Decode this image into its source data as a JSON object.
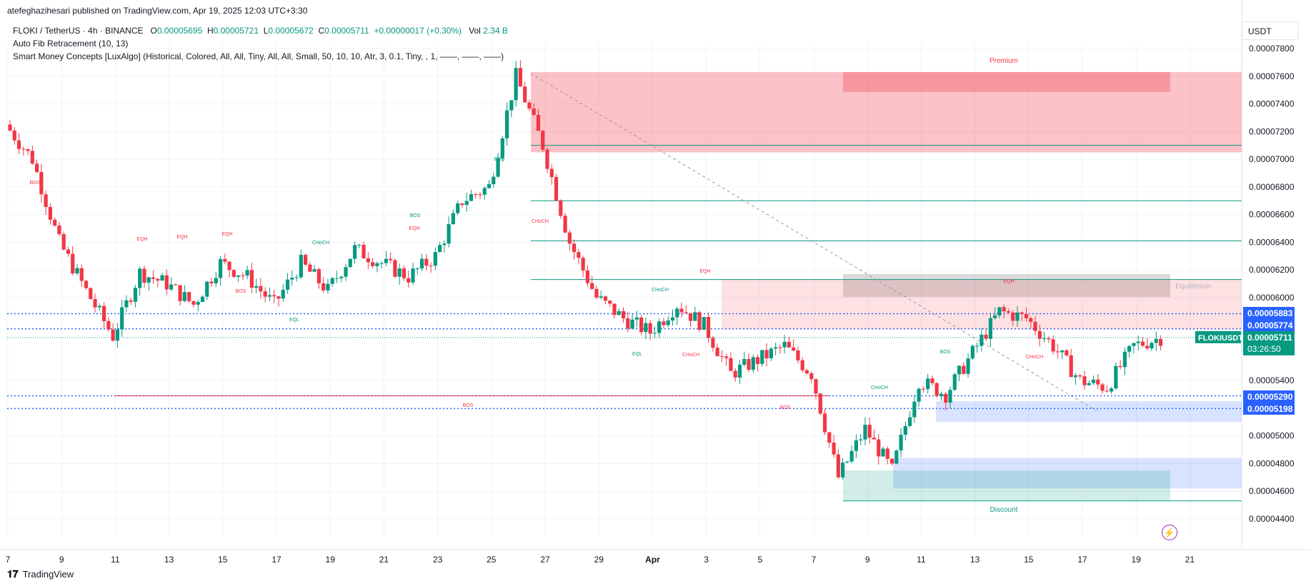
{
  "header": {
    "published": "atefeghazihesari published on TradingView.com, Apr 19, 2025 12:03 UTC+3:30"
  },
  "legend": {
    "symbol": "FLOKI / TetherUS · 4h · BINANCE",
    "o_label": "O",
    "o": "0.00005695",
    "h_label": "H",
    "h": "0.00005721",
    "l_label": "L",
    "l": "0.00005672",
    "c_label": "C",
    "c": "0.00005711",
    "change": "+0.00000017 (+0.30%)",
    "vol_label": "Vol",
    "vol": "2.34 B",
    "fib": "Auto Fib Retracement (10, 13)",
    "smc": "Smart Money Concepts [LuxAlgo] (Historical, Colored, All, All, Tiny, All, All, Small, 50, 10, 10, Atr, 3, 0.1, Tiny, , 1, ——, ——, ——)"
  },
  "axis": {
    "unit": "USDT",
    "y_ticks": [
      "0.00007800",
      "0.00007600",
      "0.00007400",
      "0.00007200",
      "0.00007000",
      "0.00006800",
      "0.00006600",
      "0.00006400",
      "0.00006200",
      "0.00006000",
      "0.00005400",
      "0.00005000",
      "0.00004800",
      "0.00004600",
      "0.00004400"
    ],
    "x_ticks": [
      "7",
      "9",
      "11",
      "13",
      "15",
      "17",
      "19",
      "21",
      "23",
      "25",
      "27",
      "29",
      "Apr",
      "3",
      "5",
      "7",
      "9",
      "11",
      "13",
      "15",
      "17",
      "19",
      "21"
    ]
  },
  "price_labels": [
    {
      "text": "0.00005883",
      "color": "#2962ff"
    },
    {
      "text": "0.00005774",
      "color": "#2962ff"
    },
    {
      "text": "0.00005290",
      "color": "#2962ff"
    },
    {
      "text": "0.00005198",
      "color": "#2962ff"
    }
  ],
  "current_price": {
    "symbol": "FLOKIUSDT",
    "price": "0.00005711",
    "countdown": "03:26:50",
    "color": "#089981"
  },
  "zones": {
    "premium": "Premium",
    "equilibrium": "Equilibrium",
    "discount": "Discount"
  },
  "smc_labels": [
    {
      "text": "BOS",
      "color": "#f23645"
    },
    {
      "text": "EQH",
      "color": "#f23645"
    },
    {
      "text": "EQH",
      "color": "#f23645"
    },
    {
      "text": "EQH",
      "color": "#f23645"
    },
    {
      "text": "BOS",
      "color": "#f23645"
    },
    {
      "text": "EQL",
      "color": "#089981"
    },
    {
      "text": "CHoCH",
      "color": "#089981"
    },
    {
      "text": "BOS",
      "color": "#089981"
    },
    {
      "text": "EQH",
      "color": "#f23645"
    },
    {
      "text": "BOS",
      "color": "#089981"
    },
    {
      "text": "CHoCH",
      "color": "#f23645"
    },
    {
      "text": "EQH",
      "color": "#f23645"
    },
    {
      "text": "CHoCH",
      "color": "#089981"
    },
    {
      "text": "EQL",
      "color": "#089981"
    },
    {
      "text": "CHoCH",
      "color": "#f23645"
    },
    {
      "text": "BOS",
      "color": "#f23645"
    },
    {
      "text": "BOS",
      "color": "#f23645"
    },
    {
      "text": "CHoCH",
      "color": "#089981"
    },
    {
      "text": "BOS",
      "color": "#089981"
    },
    {
      "text": "EQH",
      "color": "#f23645"
    },
    {
      "text": "CHoCH",
      "color": "#f23645"
    }
  ],
  "footer": {
    "brand": "TradingView"
  },
  "chart_data": {
    "type": "candlestick",
    "x_unit": "day of month (Mar 7 – Apr 19, 2025), 4h candles",
    "y_unit": "USDT",
    "ylim": [
      4.3e-05,
      7.9e-05
    ],
    "close_path": [
      {
        "x": "Mar 7",
        "y": 7.25e-05
      },
      {
        "x": "Mar 8",
        "y": 7e-05
      },
      {
        "x": "Mar 9",
        "y": 6.4e-05
      },
      {
        "x": "Mar 10",
        "y": 6.05e-05
      },
      {
        "x": "Mar 11",
        "y": 5.72e-05
      },
      {
        "x": "Mar 12",
        "y": 6.18e-05
      },
      {
        "x": "Mar 13",
        "y": 6.1e-05
      },
      {
        "x": "Mar 14",
        "y": 5.95e-05
      },
      {
        "x": "Mar 15",
        "y": 6.25e-05
      },
      {
        "x": "Mar 16",
        "y": 6.15e-05
      },
      {
        "x": "Mar 17",
        "y": 5.95e-05
      },
      {
        "x": "Mar 18",
        "y": 6.25e-05
      },
      {
        "x": "Mar 19",
        "y": 6.05e-05
      },
      {
        "x": "Mar 20",
        "y": 6.35e-05
      },
      {
        "x": "Mar 21",
        "y": 6.25e-05
      },
      {
        "x": "Mar 22",
        "y": 6.15e-05
      },
      {
        "x": "Mar 23",
        "y": 6.3e-05
      },
      {
        "x": "Mar 24",
        "y": 6.7e-05
      },
      {
        "x": "Mar 25",
        "y": 6.8e-05
      },
      {
        "x": "Mar 26",
        "y": 7.6e-05
      },
      {
        "x": "Mar 27",
        "y": 7.1e-05
      },
      {
        "x": "Mar 28",
        "y": 6.4e-05
      },
      {
        "x": "Mar 29",
        "y": 6e-05
      },
      {
        "x": "Mar 30",
        "y": 5.85e-05
      },
      {
        "x": "Mar 31",
        "y": 5.75e-05
      },
      {
        "x": "Apr 1",
        "y": 5.95e-05
      },
      {
        "x": "Apr 2",
        "y": 5.8e-05
      },
      {
        "x": "Apr 3",
        "y": 5.45e-05
      },
      {
        "x": "Apr 4",
        "y": 5.55e-05
      },
      {
        "x": "Apr 5",
        "y": 5.65e-05
      },
      {
        "x": "Apr 6",
        "y": 5.45e-05
      },
      {
        "x": "Apr 7",
        "y": 4.7e-05
      },
      {
        "x": "Apr 8",
        "y": 5.05e-05
      },
      {
        "x": "Apr 9",
        "y": 4.75e-05
      },
      {
        "x": "Apr 10",
        "y": 5.4e-05
      },
      {
        "x": "Apr 11",
        "y": 5.3e-05
      },
      {
        "x": "Apr 12",
        "y": 5.6e-05
      },
      {
        "x": "Apr 13",
        "y": 5.9e-05
      },
      {
        "x": "Apr 14",
        "y": 5.85e-05
      },
      {
        "x": "Apr 15",
        "y": 5.65e-05
      },
      {
        "x": "Apr 16",
        "y": 5.4e-05
      },
      {
        "x": "Apr 17",
        "y": 5.35e-05
      },
      {
        "x": "Apr 18",
        "y": 5.65e-05
      },
      {
        "x": "Apr 19",
        "y": 5.71e-05
      }
    ],
    "horizontal_levels": [
      5.883e-05,
      5.774e-05,
      5.29e-05,
      5.198e-05
    ],
    "zones": [
      {
        "name": "Premium",
        "from": 7.05e-05,
        "to": 7.63e-05
      },
      {
        "name": "Equilibrium",
        "from": 5.77e-05,
        "to": 6.13e-05
      },
      {
        "name": "Discount",
        "from": 4.53e-05,
        "to": 4.75e-05
      }
    ],
    "grid": true
  }
}
